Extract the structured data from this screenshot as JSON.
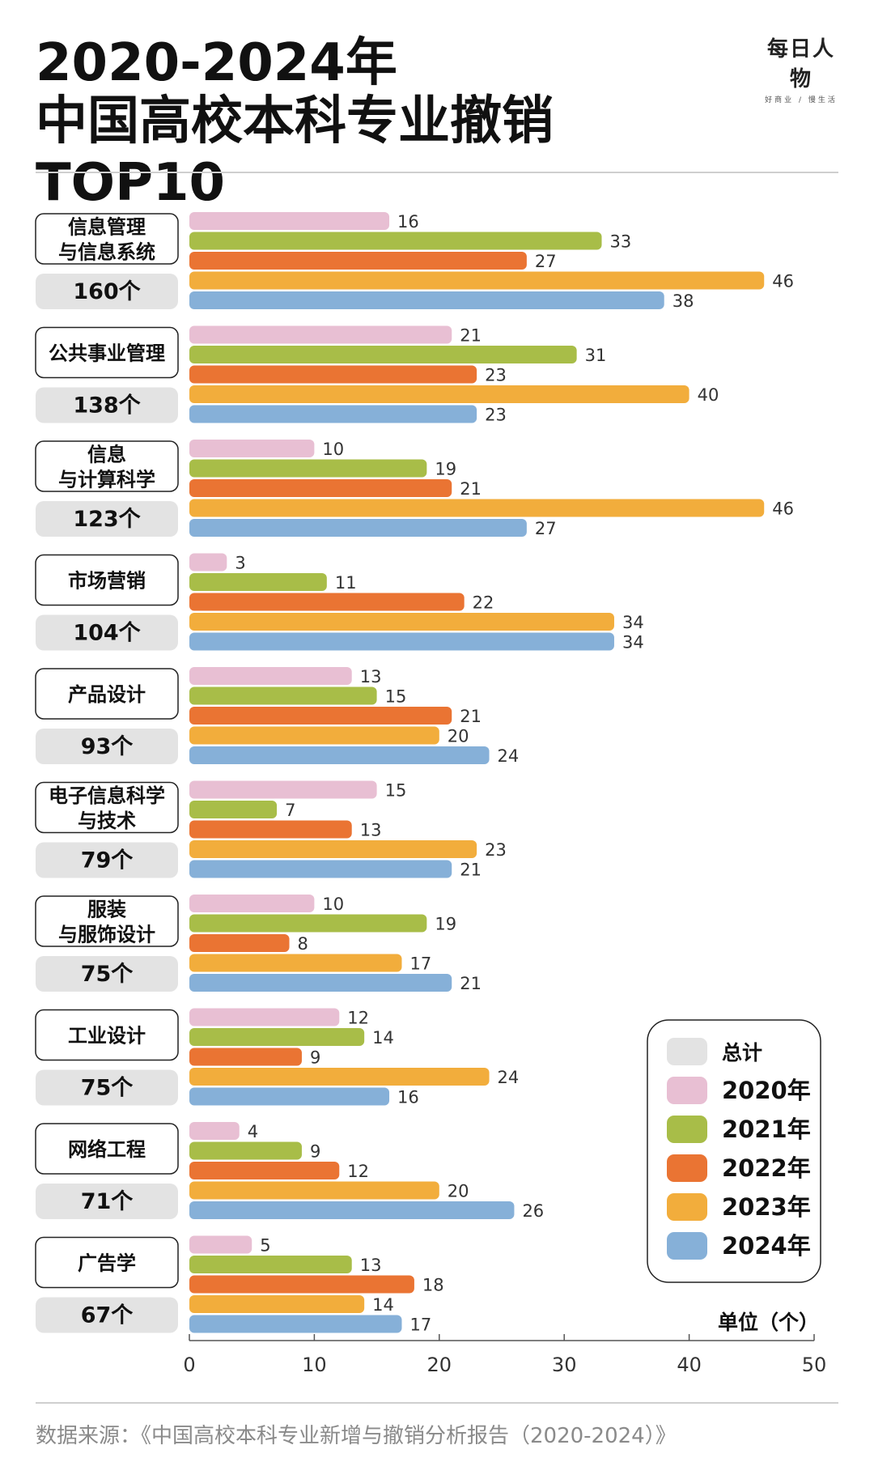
{
  "header": {
    "title_line1": "2020-2024年",
    "title_line2": "中国高校本科专业撤销TOP10",
    "brand_name": "每日人物",
    "brand_tagline": "好商业 / 慢生活"
  },
  "legend": {
    "total_label": "总计",
    "unit_label": "单位（个）"
  },
  "source": "数据来源：《中国高校本科专业新增与撤销分析报告（2020-2024）》",
  "colors": {
    "total": "#e3e3e3",
    "s2020": "#e8bfd3",
    "s2021": "#a8bd48",
    "s2022": "#ea7433",
    "s2023": "#f2ad3c",
    "s2024": "#86b0d8"
  },
  "chart_data": {
    "type": "bar",
    "orientation": "horizontal",
    "title": "2020-2024年中国高校本科专业撤销TOP10",
    "xlim": [
      0,
      50
    ],
    "xticks": [
      0,
      10,
      20,
      30,
      40,
      50
    ],
    "unit": "单位（个）",
    "categories": [
      {
        "label_lines": [
          "信息管理",
          "与信息系统"
        ],
        "total": "160个"
      },
      {
        "label_lines": [
          "公共事业管理"
        ],
        "total": "138个"
      },
      {
        "label_lines": [
          "信息",
          "与计算科学"
        ],
        "total": "123个"
      },
      {
        "label_lines": [
          "市场营销"
        ],
        "total": "104个"
      },
      {
        "label_lines": [
          "产品设计"
        ],
        "total": "93个"
      },
      {
        "label_lines": [
          "电子信息科学",
          "与技术"
        ],
        "total": "79个"
      },
      {
        "label_lines": [
          "服装",
          "与服饰设计"
        ],
        "total": "75个"
      },
      {
        "label_lines": [
          "工业设计"
        ],
        "total": "75个"
      },
      {
        "label_lines": [
          "网络工程"
        ],
        "total": "71个"
      },
      {
        "label_lines": [
          "广告学"
        ],
        "total": "67个"
      }
    ],
    "series": [
      {
        "name": "2020年",
        "color": "#e8bfd3",
        "values": [
          16,
          21,
          10,
          3,
          13,
          15,
          10,
          12,
          4,
          5
        ]
      },
      {
        "name": "2021年",
        "color": "#a8bd48",
        "values": [
          33,
          31,
          19,
          11,
          15,
          7,
          19,
          14,
          9,
          13
        ]
      },
      {
        "name": "2022年",
        "color": "#ea7433",
        "values": [
          27,
          23,
          21,
          22,
          21,
          13,
          8,
          9,
          12,
          18
        ]
      },
      {
        "name": "2023年",
        "color": "#f2ad3c",
        "values": [
          46,
          40,
          46,
          34,
          20,
          23,
          17,
          24,
          20,
          14
        ]
      },
      {
        "name": "2024年",
        "color": "#86b0d8",
        "values": [
          38,
          23,
          27,
          34,
          24,
          21,
          21,
          16,
          26,
          17
        ]
      }
    ],
    "legend_position": "bottom-right"
  }
}
